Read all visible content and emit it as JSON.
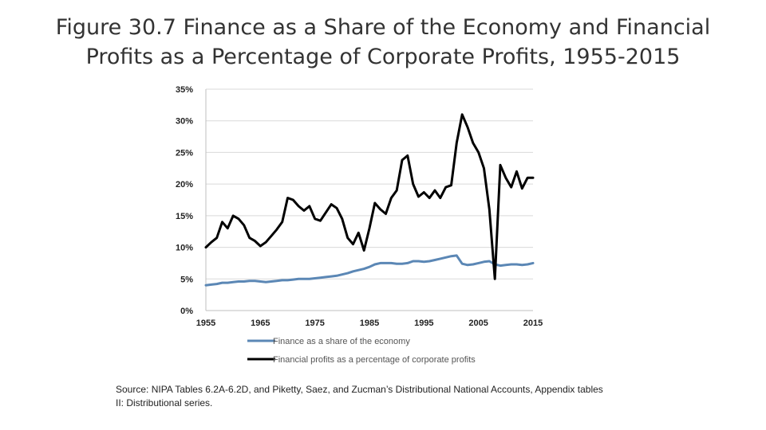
{
  "title_line1": "Figure 30.7 Finance as a Share of the Economy and Financial",
  "title_line2": "Profits as a Percentage of Corporate Profits, 1955-2015",
  "source_line1": "Source: NIPA Tables 6.2A-6.2D, and Piketty, Saez, and Zucman’s Distributional National Accounts, Appendix tables",
  "source_line2": "II: Distributional series.",
  "chart_data": {
    "type": "line",
    "title": "Figure 30.7 Finance as a Share of the Economy and Financial Profits as a Percentage of Corporate Profits, 1955-2015",
    "xlabel": "",
    "ylabel": "",
    "xlim": [
      1955,
      2015
    ],
    "ylim": [
      0,
      35
    ],
    "x_ticks": [
      1955,
      1965,
      1975,
      1985,
      1995,
      2005,
      2015
    ],
    "x_tick_labels": [
      "1955",
      "1965",
      "1975",
      "1985",
      "1995",
      "2005",
      "2015"
    ],
    "y_ticks": [
      0,
      5,
      10,
      15,
      20,
      25,
      30,
      35
    ],
    "y_tick_labels": [
      "0%",
      "5%",
      "10%",
      "15%",
      "20%",
      "25%",
      "30%",
      "35%"
    ],
    "grid": true,
    "legend_position": "bottom",
    "series": [
      {
        "name": "Finance as a share of the economy",
        "color": "#5b87b5",
        "x": [
          1955,
          1956,
          1957,
          1958,
          1959,
          1960,
          1961,
          1962,
          1963,
          1964,
          1965,
          1966,
          1967,
          1968,
          1969,
          1970,
          1971,
          1972,
          1973,
          1974,
          1975,
          1976,
          1977,
          1978,
          1979,
          1980,
          1981,
          1982,
          1983,
          1984,
          1985,
          1986,
          1987,
          1988,
          1989,
          1990,
          1991,
          1992,
          1993,
          1994,
          1995,
          1996,
          1997,
          1998,
          1999,
          2000,
          2001,
          2002,
          2003,
          2004,
          2005,
          2006,
          2007,
          2008,
          2009,
          2010,
          2011,
          2012,
          2013,
          2014,
          2015
        ],
        "values": [
          4.0,
          4.1,
          4.2,
          4.4,
          4.4,
          4.5,
          4.6,
          4.6,
          4.7,
          4.7,
          4.6,
          4.5,
          4.6,
          4.7,
          4.8,
          4.8,
          4.9,
          5.0,
          5.0,
          5.0,
          5.1,
          5.2,
          5.3,
          5.4,
          5.5,
          5.7,
          5.9,
          6.2,
          6.4,
          6.6,
          6.9,
          7.3,
          7.5,
          7.5,
          7.5,
          7.4,
          7.4,
          7.5,
          7.8,
          7.8,
          7.7,
          7.8,
          8.0,
          8.2,
          8.4,
          8.6,
          8.7,
          7.4,
          7.2,
          7.3,
          7.5,
          7.7,
          7.8,
          7.3,
          7.1,
          7.2,
          7.3,
          7.3,
          7.2,
          7.3,
          7.5
        ]
      },
      {
        "name": "Financial profits as a percentage of corporate profits",
        "color": "#000000",
        "x": [
          1955,
          1956,
          1957,
          1958,
          1959,
          1960,
          1961,
          1962,
          1963,
          1964,
          1965,
          1966,
          1967,
          1968,
          1969,
          1970,
          1971,
          1972,
          1973,
          1974,
          1975,
          1976,
          1977,
          1978,
          1979,
          1980,
          1981,
          1982,
          1983,
          1984,
          1985,
          1986,
          1987,
          1988,
          1989,
          1990,
          1991,
          1992,
          1993,
          1994,
          1995,
          1996,
          1997,
          1998,
          1999,
          2000,
          2001,
          2002,
          2003,
          2004,
          2005,
          2006,
          2007,
          2008,
          2009,
          2010,
          2011,
          2012,
          2013,
          2014,
          2015
        ],
        "values": [
          10.0,
          10.8,
          11.5,
          14.0,
          13.0,
          15.0,
          14.5,
          13.5,
          11.5,
          11.0,
          10.2,
          10.8,
          11.8,
          12.8,
          14.0,
          17.8,
          17.5,
          16.5,
          15.8,
          16.5,
          14.5,
          14.2,
          15.5,
          16.8,
          16.2,
          14.5,
          11.5,
          10.5,
          12.3,
          9.5,
          13.0,
          17.0,
          16.0,
          15.3,
          17.8,
          19.0,
          23.8,
          24.5,
          20.0,
          18.0,
          18.7,
          17.8,
          19.0,
          17.8,
          19.5,
          19.8,
          26.5,
          31.0,
          29.0,
          26.5,
          25.0,
          22.5,
          16.0,
          5.0,
          23.0,
          21.0,
          19.5,
          22.0,
          19.3,
          21.0,
          21.0
        ]
      }
    ]
  }
}
